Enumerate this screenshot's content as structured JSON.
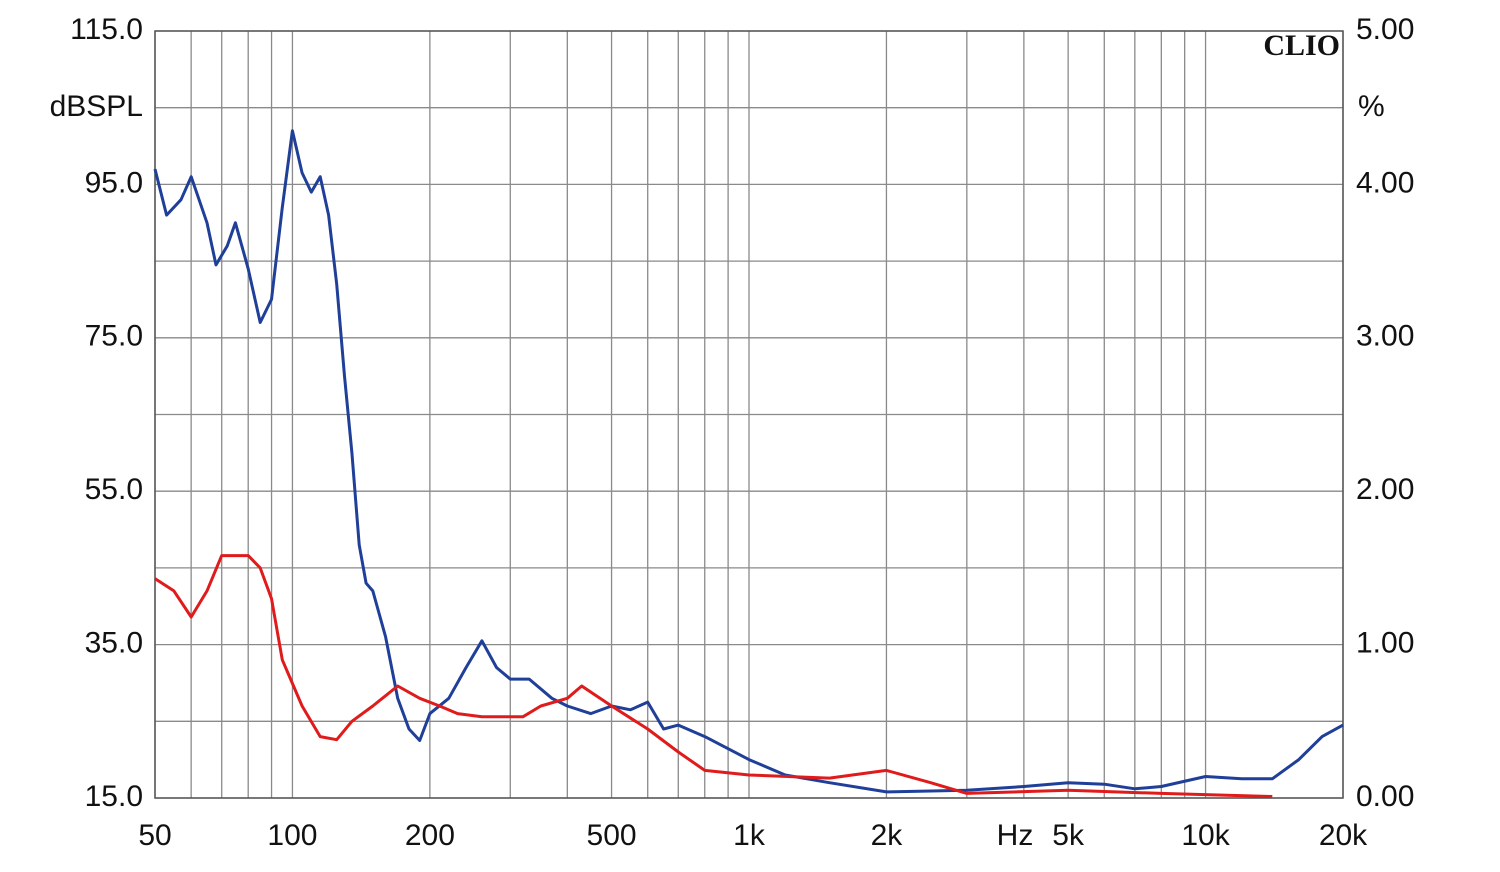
{
  "chart_data": {
    "type": "line",
    "brand": "CLIO",
    "ylabel": "dBSPL",
    "y2label": "%",
    "xlabel": "Hz",
    "xscale": "log",
    "xlim": [
      50,
      20000
    ],
    "xticks": [
      50,
      100,
      200,
      500,
      {
        "value": 1000,
        "label": "1k"
      },
      {
        "value": 2000,
        "label": "2k"
      },
      {
        "value": 5000,
        "label": "5k"
      },
      {
        "value": 10000,
        "label": "10k"
      },
      {
        "value": 20000,
        "label": "20k"
      }
    ],
    "xgrid": [
      60,
      70,
      80,
      90,
      300,
      400,
      600,
      700,
      800,
      900,
      3000,
      4000,
      6000,
      7000,
      8000,
      9000
    ],
    "ylim": [
      15,
      115
    ],
    "yticks": [
      {
        "value": 15,
        "label": "15.0"
      },
      {
        "value": 35,
        "label": "35.0"
      },
      {
        "value": 55,
        "label": "55.0"
      },
      {
        "value": 75,
        "label": "75.0"
      },
      {
        "value": 95,
        "label": "95.0"
      },
      {
        "value": 115,
        "label": "115.0"
      }
    ],
    "ygrid": [
      25,
      45,
      65,
      85,
      105
    ],
    "y2lim": [
      0,
      5
    ],
    "y2ticks": [
      {
        "value": 0,
        "label": "0.00"
      },
      {
        "value": 1,
        "label": "1.00"
      },
      {
        "value": 2,
        "label": "2.00"
      },
      {
        "value": 3,
        "label": "3.00"
      },
      {
        "value": 4,
        "label": "4.00"
      },
      {
        "value": 5,
        "label": "5.00"
      }
    ],
    "grid": true,
    "series": [
      {
        "color": "#1f3f99",
        "x": [
          50,
          53,
          57,
          60,
          65,
          68,
          72,
          75,
          80,
          85,
          90,
          95,
          100,
          105,
          110,
          115,
          120,
          125,
          130,
          135,
          140,
          145,
          150,
          160,
          170,
          180,
          190,
          200,
          220,
          240,
          260,
          280,
          300,
          330,
          370,
          400,
          450,
          500,
          550,
          600,
          650,
          700,
          800,
          1000,
          1200,
          1500,
          2000,
          3000,
          4000,
          5000,
          6000,
          7000,
          8000,
          10000,
          12000,
          14000,
          16000,
          18000,
          20000
        ],
        "values": [
          97,
          91,
          93,
          96,
          90,
          84.5,
          87,
          90,
          84,
          77,
          80,
          92,
          102,
          96.5,
          94,
          96,
          91,
          82,
          70,
          60,
          48,
          43,
          42,
          36,
          28,
          24,
          22.5,
          26,
          28,
          32,
          35.5,
          32,
          30.5,
          30.5,
          28,
          27,
          26,
          27,
          26.5,
          27.5,
          24,
          24.5,
          23,
          20,
          18,
          17,
          15.8,
          16,
          16.5,
          17,
          16.8,
          16.2,
          16.5,
          17.8,
          17.5,
          17.5,
          20,
          23,
          24.5
        ]
      },
      {
        "color": "#e01b1b",
        "axis": "y2",
        "x": [
          50,
          55,
          60,
          65,
          70,
          80,
          85,
          90,
          95,
          105,
          115,
          125,
          135,
          150,
          170,
          190,
          210,
          230,
          260,
          320,
          350,
          400,
          430,
          500,
          600,
          700,
          800,
          1000,
          1500,
          2000,
          2500,
          3000,
          5000,
          8000,
          14000
        ],
        "values": [
          1.43,
          1.35,
          1.18,
          1.35,
          1.58,
          1.58,
          1.5,
          1.3,
          0.9,
          0.6,
          0.4,
          0.38,
          0.5,
          0.6,
          0.73,
          0.65,
          0.6,
          0.55,
          0.53,
          0.53,
          0.6,
          0.65,
          0.73,
          0.6,
          0.45,
          0.3,
          0.18,
          0.15,
          0.13,
          0.18,
          0.1,
          0.03,
          0.05,
          0.03,
          0.01
        ]
      }
    ]
  }
}
